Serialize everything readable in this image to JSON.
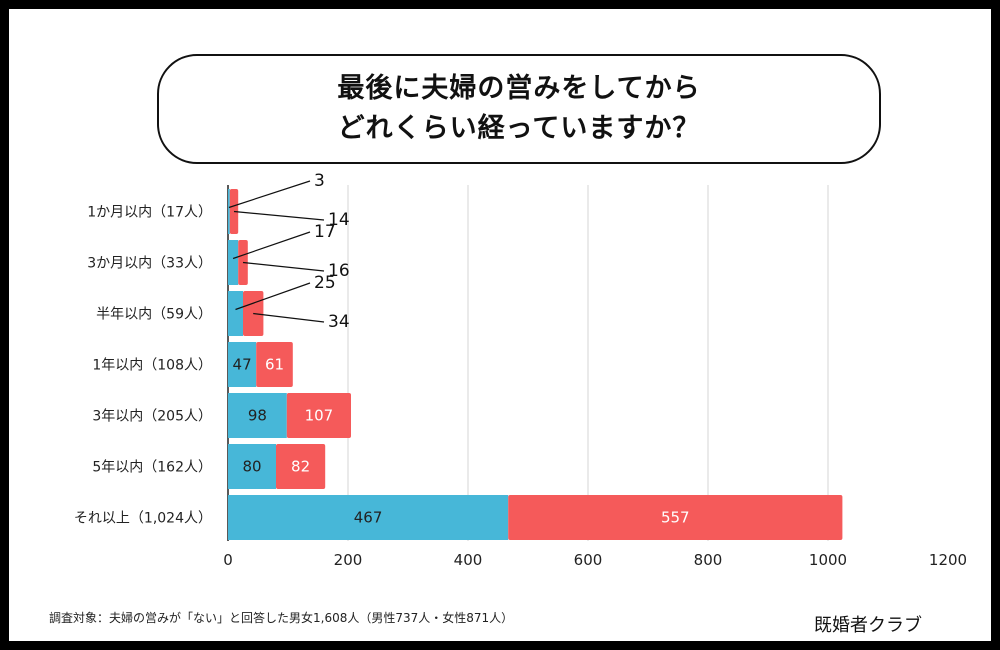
{
  "title_line1": "最後に夫婦の営みをしてから",
  "title_line2": "どれくらい経っていますか？",
  "footnote": "調査対象：夫婦の営みが「ない」と回答した男女1,608人（男性737人・女性871人）",
  "brand": "既婚者クラブ",
  "colors": {
    "male": "#47b7d8",
    "female": "#f55a5a",
    "grid": "#d6d6d6",
    "axis": "#222222"
  },
  "chart_data": {
    "type": "bar",
    "orientation": "horizontal",
    "stacked": true,
    "categories": [
      "1か月以内（17人）",
      "3か月以内（33人）",
      "半年以内（59人）",
      "1年以内（108人）",
      "3年以内（205人）",
      "5年以内（162人）",
      "それ以上（1,024人）"
    ],
    "series": [
      {
        "values": [
          3,
          17,
          25,
          47,
          98,
          80,
          467
        ]
      },
      {
        "values": [
          14,
          16,
          34,
          61,
          107,
          82,
          557
        ]
      }
    ],
    "xlim": [
      0,
      1200
    ],
    "xticks": [
      0,
      200,
      400,
      600,
      800,
      1000,
      1200
    ],
    "grid": true,
    "legend": "none"
  }
}
